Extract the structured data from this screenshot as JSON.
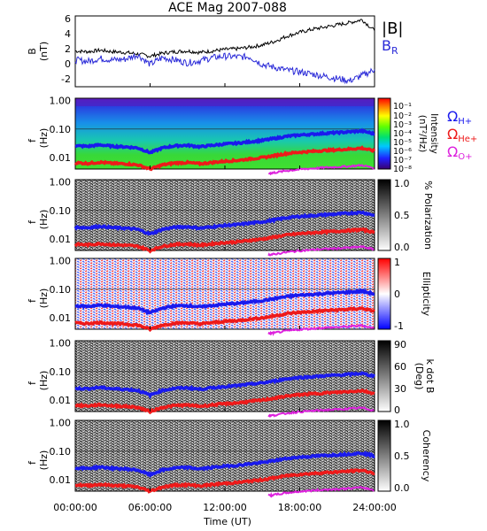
{
  "title": "ACE Mag 2007-088",
  "x_axis": {
    "label": "Time (UT)",
    "ticks": [
      "00:00:00",
      "06:00:00",
      "12:00:00",
      "18:00:00",
      "24:00:00"
    ],
    "range_hours": [
      0,
      24
    ]
  },
  "legends": {
    "field": [
      {
        "text": "|B|",
        "color": "#000000"
      },
      {
        "text": "B",
        "sub": "R",
        "color": "#2a2ad8"
      }
    ],
    "gyro": [
      {
        "text": "Ω",
        "sub": "H+",
        "color": "#1a1aee"
      },
      {
        "text": "Ω",
        "sub": "He+",
        "color": "#ee1a1a"
      },
      {
        "text": "Ω",
        "sub": "O+",
        "color": "#dd22dd"
      }
    ]
  },
  "panels": [
    {
      "id": "b-field",
      "ylabel": "B",
      "yunit": "(nT)",
      "yticks": [
        "6",
        "4",
        "2",
        "0",
        "-2"
      ]
    },
    {
      "id": "intensity",
      "ylabel": "f",
      "yunit": "(Hz)",
      "yticks": [
        "1.00",
        "0.10",
        "0.01"
      ],
      "colorbar": {
        "label": "Intensity",
        "unit": "(nT²/Hz)",
        "ticks": [
          "10⁻¹",
          "10⁻²",
          "10⁻³",
          "10⁻⁴",
          "10⁻⁵",
          "10⁻⁶",
          "10⁻⁷",
          "10⁻⁸"
        ]
      }
    },
    {
      "id": "polarization",
      "ylabel": "f",
      "yunit": "(Hz)",
      "yticks": [
        "1.00",
        "0.10",
        "0.01"
      ],
      "colorbar": {
        "label": "% Polarization",
        "unit": "",
        "ticks": [
          "1.0",
          "0.5",
          "0.0"
        ]
      }
    },
    {
      "id": "ellipticity",
      "ylabel": "f",
      "yunit": "(Hz)",
      "yticks": [
        "1.00",
        "0.10",
        "0.01"
      ],
      "colorbar": {
        "label": "Ellipticity",
        "unit": "",
        "ticks": [
          "1",
          "0",
          "-1"
        ]
      }
    },
    {
      "id": "k-dot-b",
      "ylabel": "f",
      "yunit": "(Hz)",
      "yticks": [
        "1.00",
        "0.10",
        "0.01"
      ],
      "colorbar": {
        "label": "k dot B",
        "unit": "(Deg)",
        "ticks": [
          "90",
          "60",
          "30",
          "0"
        ]
      }
    },
    {
      "id": "coherency",
      "ylabel": "f",
      "yunit": "(Hz)",
      "yticks": [
        "1.00",
        "0.10",
        "0.01"
      ],
      "colorbar": {
        "label": "Coherency",
        "unit": "",
        "ticks": [
          "1.0",
          "0.5",
          "0.0"
        ]
      }
    }
  ],
  "chart_data": {
    "type": "line",
    "title": "ACE Mag 2007-088",
    "xlabel": "Time (UT)",
    "xlim_hours": [
      0,
      24
    ],
    "b_field": {
      "ylim": [
        -3,
        6.5
      ],
      "series": [
        {
          "name": "|B|",
          "color": "#000000",
          "x": [
            0,
            1,
            2,
            3,
            4,
            5,
            6,
            7,
            8,
            9,
            10,
            11,
            12,
            13,
            14,
            15,
            16,
            17,
            18,
            19,
            20,
            21,
            22,
            23,
            24
          ],
          "y": [
            1.8,
            1.7,
            1.9,
            1.7,
            1.6,
            1.4,
            1.1,
            1.5,
            1.7,
            1.8,
            1.6,
            1.8,
            2.0,
            2.1,
            2.3,
            2.6,
            3.1,
            3.8,
            4.3,
            4.7,
            5.0,
            5.3,
            5.6,
            6.0,
            4.5
          ]
        },
        {
          "name": "B_R",
          "color": "#2a2ad8",
          "x": [
            0,
            1,
            2,
            3,
            4,
            5,
            6,
            7,
            8,
            9,
            10,
            11,
            12,
            13,
            14,
            15,
            16,
            17,
            18,
            19,
            20,
            21,
            22,
            23,
            24
          ],
          "y": [
            0.6,
            0.4,
            0.8,
            0.6,
            0.7,
            1.3,
            0.0,
            0.9,
            0.6,
            0.2,
            0.5,
            0.9,
            1.1,
            1.0,
            1.0,
            0.0,
            -0.4,
            -0.8,
            -1.0,
            -1.3,
            -1.6,
            -1.9,
            -2.2,
            -1.5,
            -0.7
          ]
        }
      ]
    },
    "gyrofrequency_lines": {
      "ylim_hz": [
        0.004,
        1.2
      ],
      "series": [
        {
          "name": "Ω_H+",
          "color": "#1a1aee",
          "x": [
            0,
            1,
            2,
            3,
            4,
            5,
            6,
            7,
            8,
            9,
            10,
            11,
            12,
            13,
            14,
            15,
            16,
            17,
            18,
            19,
            20,
            21,
            22,
            23,
            24
          ],
          "y": [
            0.026,
            0.025,
            0.028,
            0.025,
            0.024,
            0.022,
            0.015,
            0.022,
            0.026,
            0.027,
            0.024,
            0.027,
            0.03,
            0.032,
            0.036,
            0.04,
            0.047,
            0.056,
            0.062,
            0.066,
            0.071,
            0.075,
            0.08,
            0.086,
            0.068
          ]
        },
        {
          "name": "Ω_He+",
          "color": "#ee1a1a",
          "x": [
            0,
            1,
            2,
            3,
            4,
            5,
            6,
            7,
            8,
            9,
            10,
            11,
            12,
            13,
            14,
            15,
            16,
            17,
            18,
            19,
            20,
            21,
            22,
            23,
            24
          ],
          "y": [
            0.0066,
            0.0063,
            0.0069,
            0.0063,
            0.0061,
            0.0056,
            0.004,
            0.0056,
            0.0065,
            0.0067,
            0.0061,
            0.0068,
            0.0075,
            0.008,
            0.009,
            0.01,
            0.0118,
            0.014,
            0.0155,
            0.0166,
            0.0178,
            0.0188,
            0.02,
            0.0215,
            0.017
          ]
        },
        {
          "name": "Ω_O+",
          "color": "#dd22dd",
          "x": [
            15.5,
            16,
            17,
            18,
            19,
            20,
            21,
            22,
            23,
            24
          ],
          "y": [
            0.0028,
            0.003,
            0.0035,
            0.0039,
            0.0042,
            0.0045,
            0.0047,
            0.005,
            0.0054,
            0.0043
          ]
        }
      ]
    },
    "spectrogram_panels": [
      "Intensity",
      "% Polarization",
      "Ellipticity",
      "k dot B",
      "Coherency"
    ]
  }
}
